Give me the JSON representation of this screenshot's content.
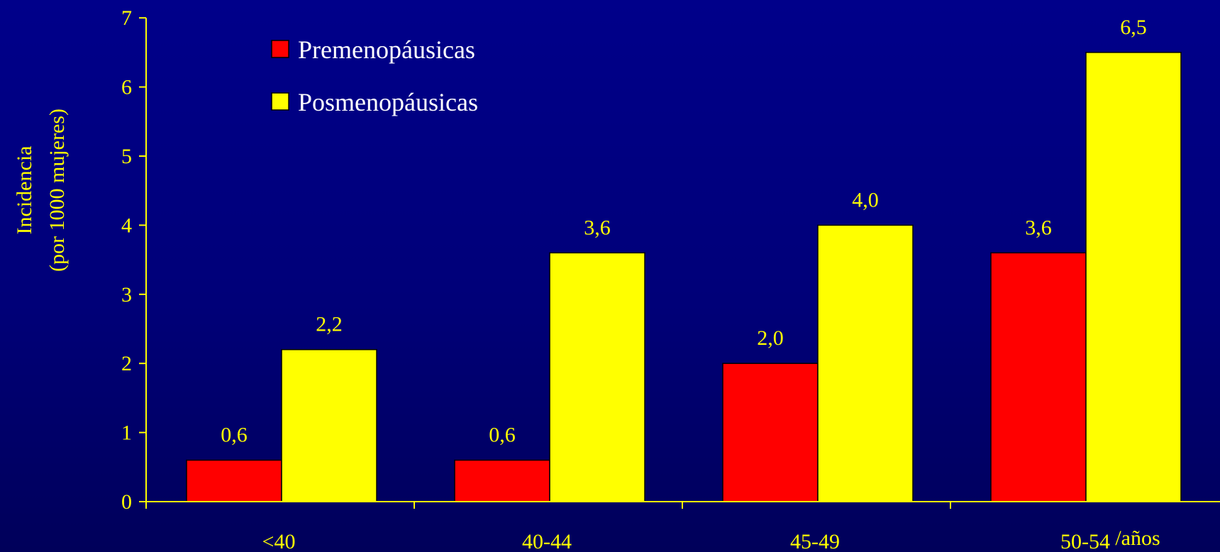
{
  "chart_data": {
    "type": "bar",
    "categories": [
      "<40",
      "40-44",
      "45-49",
      "50-54"
    ],
    "series": [
      {
        "name": "Premenopáusicas",
        "values": [
          0.6,
          0.6,
          2.0,
          3.6
        ],
        "labels": [
          "0,6",
          "0,6",
          "2,0",
          "3,6"
        ],
        "color": "#ff0000"
      },
      {
        "name": "Posmenopáusicas",
        "values": [
          2.2,
          3.6,
          4.0,
          6.5
        ],
        "labels": [
          "2,2",
          "3,6",
          "4,0",
          "6,5"
        ],
        "color": "#ffff00"
      }
    ],
    "ylabel_line1": "Incidencia",
    "ylabel_line2": "(por 1000 mujeres)",
    "xlabel": "/años",
    "ylim": [
      0,
      7
    ],
    "yticks": [
      0,
      1,
      2,
      3,
      4,
      5,
      6,
      7
    ],
    "grid": false,
    "legend_position": "top-left",
    "axis_color": "#ffff00",
    "text_color": "#ffff00",
    "background_color": "#00008a"
  }
}
